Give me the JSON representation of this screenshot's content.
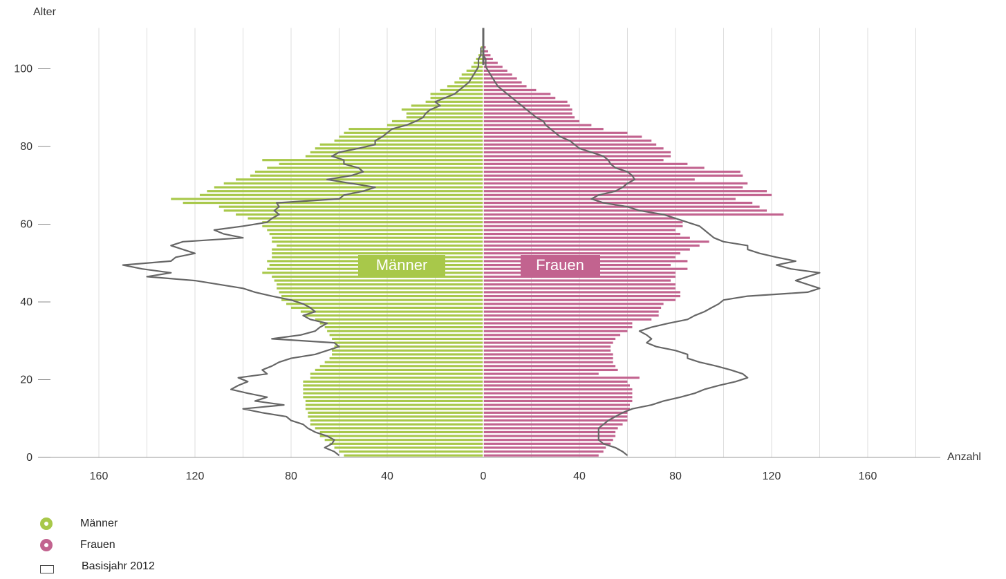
{
  "chart_data": {
    "type": "population-pyramid",
    "y_axis_title": "Alter",
    "x_axis_title": "Anzahl",
    "x_ticks": [
      "160",
      "120",
      "80",
      "40",
      "0",
      "40",
      "80",
      "120",
      "160"
    ],
    "x_tick_values": [
      -160,
      -120,
      -80,
      -40,
      0,
      40,
      80,
      120,
      160
    ],
    "y_ticks": [
      0,
      20,
      40,
      60,
      80,
      100
    ],
    "xlim": [
      -180,
      180
    ],
    "ylim": [
      0,
      110
    ],
    "labels": {
      "men": "Männer",
      "women": "Frauen"
    },
    "colors": {
      "men": "#a8c84a",
      "women": "#c2638f",
      "baseline": "#666666",
      "grid": "#dddddd"
    },
    "ages": [
      0,
      1,
      2,
      3,
      4,
      5,
      6,
      7,
      8,
      9,
      10,
      11,
      12,
      13,
      14,
      15,
      16,
      17,
      18,
      19,
      20,
      21,
      22,
      23,
      24,
      25,
      26,
      27,
      28,
      29,
      30,
      31,
      32,
      33,
      34,
      35,
      36,
      37,
      38,
      39,
      40,
      41,
      42,
      43,
      44,
      45,
      46,
      47,
      48,
      49,
      50,
      51,
      52,
      53,
      54,
      55,
      56,
      57,
      58,
      59,
      60,
      61,
      62,
      63,
      64,
      65,
      66,
      67,
      68,
      69,
      70,
      71,
      72,
      73,
      74,
      75,
      76,
      77,
      78,
      79,
      80,
      81,
      82,
      83,
      84,
      85,
      86,
      87,
      88,
      89,
      90,
      91,
      92,
      93,
      94,
      95,
      96,
      97,
      98,
      99,
      100,
      101,
      102,
      103,
      104,
      105
    ],
    "men": [
      58,
      60,
      62,
      64,
      66,
      68,
      68,
      70,
      72,
      72,
      73,
      73,
      74,
      74,
      74,
      75,
      75,
      75,
      75,
      75,
      72,
      72,
      70,
      68,
      66,
      64,
      63,
      63,
      62,
      62,
      63,
      64,
      65,
      66,
      68,
      70,
      74,
      76,
      80,
      82,
      84,
      84,
      85,
      86,
      86,
      87,
      88,
      92,
      90,
      89,
      90,
      88,
      88,
      88,
      86,
      88,
      88,
      89,
      90,
      92,
      92,
      98,
      103,
      108,
      110,
      125,
      130,
      118,
      115,
      112,
      108,
      103,
      97,
      95,
      90,
      85,
      92,
      74,
      72,
      70,
      68,
      62,
      60,
      58,
      56,
      40,
      38,
      32,
      32,
      34,
      30,
      24,
      22,
      22,
      18,
      15,
      12,
      10,
      9,
      7,
      5,
      4,
      3,
      2,
      1,
      1
    ],
    "women": [
      48,
      50,
      51,
      53,
      54,
      55,
      55,
      56,
      58,
      60,
      60,
      60,
      61,
      61,
      62,
      62,
      62,
      62,
      61,
      60,
      65,
      48,
      56,
      55,
      54,
      54,
      54,
      53,
      53,
      54,
      55,
      57,
      60,
      62,
      62,
      70,
      73,
      73,
      74,
      75,
      80,
      82,
      82,
      80,
      80,
      78,
      80,
      80,
      85,
      78,
      85,
      80,
      82,
      86,
      90,
      94,
      86,
      82,
      80,
      83,
      83,
      80,
      125,
      118,
      115,
      112,
      105,
      120,
      118,
      108,
      110,
      88,
      108,
      107,
      92,
      85,
      75,
      78,
      78,
      75,
      72,
      70,
      66,
      60,
      50,
      45,
      40,
      38,
      37,
      37,
      36,
      35,
      30,
      28,
      22,
      18,
      16,
      14,
      12,
      10,
      8,
      6,
      4,
      3,
      2,
      1
    ],
    "baseline_men": [
      60,
      62,
      66,
      63,
      62,
      65,
      70,
      73,
      75,
      80,
      82,
      92,
      100,
      83,
      95,
      90,
      98,
      105,
      102,
      98,
      102,
      90,
      92,
      88,
      85,
      80,
      70,
      65,
      60,
      62,
      88,
      76,
      70,
      68,
      65,
      72,
      75,
      70,
      72,
      75,
      80,
      88,
      95,
      100,
      110,
      120,
      140,
      130,
      142,
      150,
      130,
      128,
      120,
      125,
      130,
      125,
      100,
      108,
      112,
      100,
      90,
      88,
      85,
      87,
      85,
      86,
      60,
      58,
      50,
      45,
      55,
      65,
      55,
      50,
      52,
      58,
      58,
      63,
      60,
      52,
      45,
      45,
      42,
      40,
      38,
      32,
      28,
      25,
      24,
      22,
      18,
      20,
      16,
      12,
      10,
      8,
      6,
      5,
      4,
      3,
      2,
      2,
      2,
      1,
      1,
      1
    ],
    "baseline_women": [
      60,
      58,
      55,
      50,
      48,
      48,
      48,
      48,
      50,
      52,
      55,
      58,
      62,
      70,
      75,
      82,
      88,
      92,
      98,
      105,
      110,
      108,
      103,
      97,
      90,
      85,
      85,
      80,
      72,
      68,
      70,
      68,
      65,
      70,
      77,
      85,
      88,
      92,
      95,
      98,
      100,
      110,
      135,
      140,
      135,
      130,
      135,
      140,
      128,
      122,
      130,
      122,
      115,
      110,
      110,
      100,
      96,
      94,
      92,
      90,
      85,
      80,
      75,
      65,
      60,
      50,
      45,
      48,
      55,
      58,
      60,
      63,
      62,
      60,
      55,
      53,
      52,
      50,
      45,
      40,
      38,
      36,
      32,
      30,
      28,
      26,
      25,
      22,
      20,
      18,
      16,
      14,
      12,
      10,
      8,
      6,
      5,
      4,
      3,
      2,
      1,
      1,
      1,
      0,
      0,
      0
    ]
  },
  "legend": {
    "items": [
      {
        "label": "Männer",
        "color": "#a8c84a"
      },
      {
        "label": "Frauen",
        "color": "#c2638f"
      },
      {
        "label": "Basisjahr 2012"
      }
    ]
  }
}
